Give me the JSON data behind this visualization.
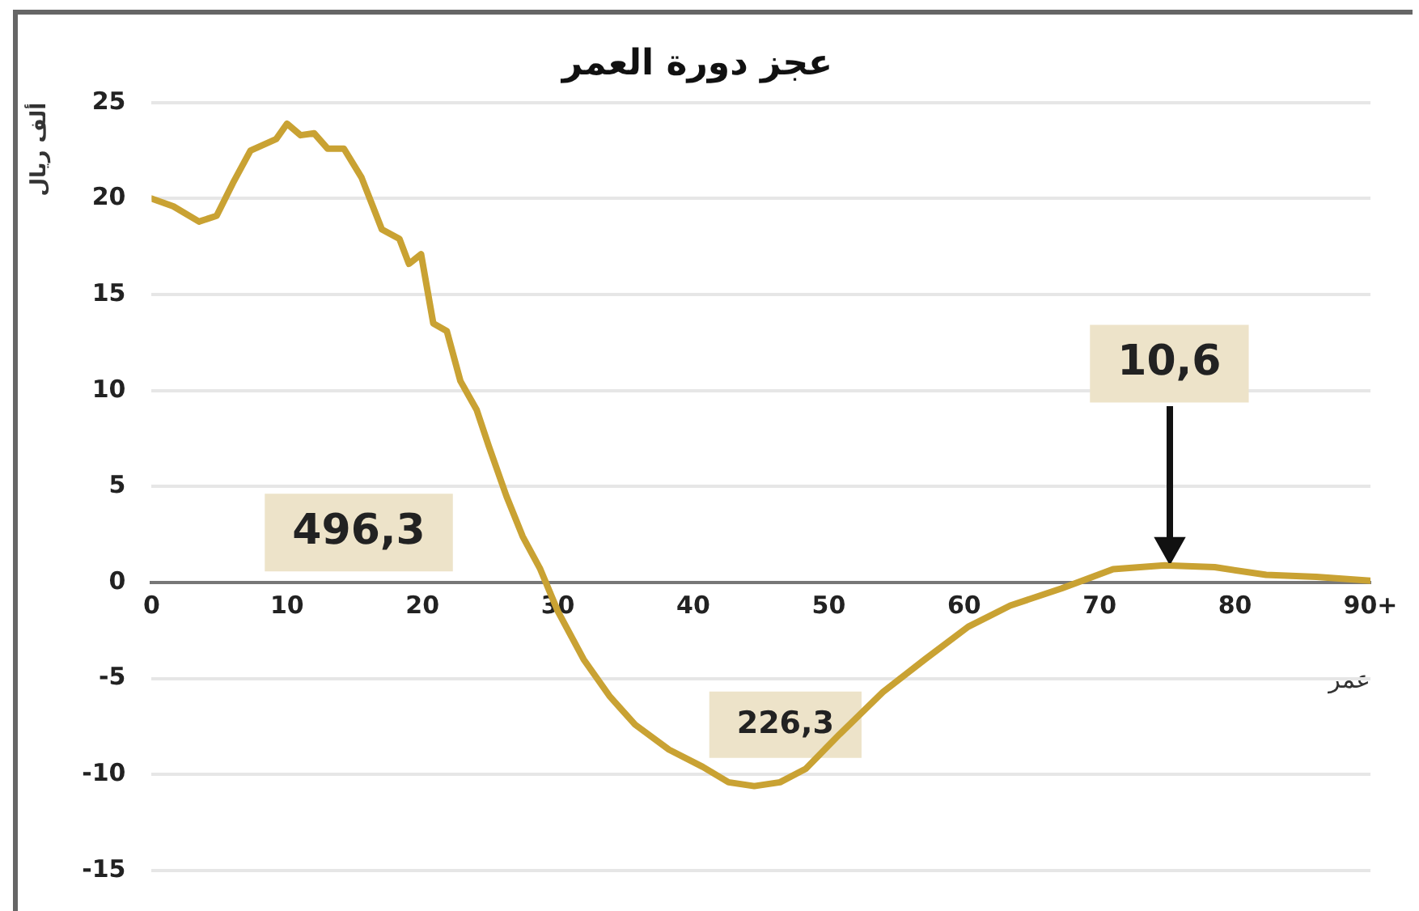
{
  "chart_data": {
    "type": "line",
    "title": "عجز دورة العمر",
    "xlabel": "عمر",
    "ylabel": "ألف ريال",
    "series": [
      {
        "color": "#c9a233",
        "x": [
          0,
          1.6,
          3.5,
          4.8,
          6,
          7.3,
          9.2,
          10,
          11,
          12,
          13,
          14.2,
          15.5,
          17,
          18.3,
          19,
          19.9,
          20.8,
          21.8,
          22.8,
          24,
          24.9,
          26.2,
          27.4,
          28.7,
          30,
          31.9,
          33.8,
          35.7,
          38.2,
          40.7,
          42.6,
          44.5,
          46.4,
          48.3,
          50.8,
          54,
          57.1,
          60.3,
          63.4,
          67.2,
          71,
          74.8,
          78.5,
          82.3,
          86,
          90
        ],
        "values": [
          20.0,
          19.6,
          18.8,
          19.1,
          20.8,
          22.5,
          23.1,
          23.9,
          23.3,
          23.4,
          22.6,
          22.6,
          21.1,
          18.4,
          17.9,
          16.6,
          17.1,
          13.5,
          13.1,
          10.5,
          9.0,
          7.1,
          4.5,
          2.4,
          0.7,
          -1.5,
          -4.0,
          -5.9,
          -7.4,
          -8.7,
          -9.6,
          -10.4,
          -10.6,
          -10.4,
          -9.7,
          -7.9,
          -5.7,
          -4.0,
          -2.3,
          -1.2,
          -0.3,
          0.7,
          0.9,
          0.8,
          0.4,
          0.3,
          0.1
        ]
      }
    ],
    "xlim": [
      0,
      90
    ],
    "xticks": [
      0,
      10,
      20,
      30,
      40,
      50,
      60,
      70,
      80,
      {
        "value": 90,
        "label": "90+"
      }
    ],
    "ylim": [
      -15,
      25
    ],
    "yticks": [
      -15,
      -10,
      -5,
      0,
      5,
      10,
      15,
      20,
      25
    ],
    "grid": "y",
    "legend": false,
    "marker": "none",
    "line_style": "solid",
    "annotations": [
      "496,3",
      "226,3",
      "10,6"
    ]
  }
}
